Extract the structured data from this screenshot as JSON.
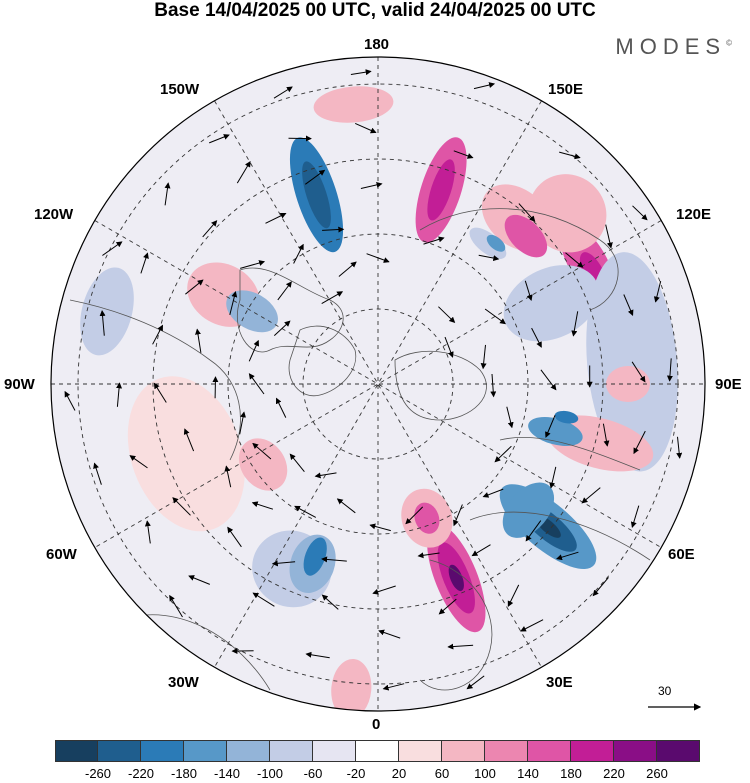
{
  "title": "Base 14/04/2025 00 UTC, valid 24/04/2025 00 UTC",
  "brand": {
    "text": "MODES",
    "mark": "©"
  },
  "longitudes": {
    "top": "180",
    "bottom": "0",
    "left": "90W",
    "right": "90E",
    "upper_left_1": "150W",
    "upper_left_2": "120W",
    "upper_right_1": "150E",
    "upper_right_2": "120E",
    "lower_left_1": "60W",
    "lower_left_2": "30W",
    "lower_right_1": "60E",
    "lower_right_2": "30E"
  },
  "reference_vector": {
    "label": "30",
    "icon": "arrow-right-icon"
  },
  "colorbar": {
    "ticks": [
      "-260",
      "-220",
      "-180",
      "-140",
      "-100",
      "-60",
      "-20",
      "20",
      "60",
      "100",
      "140",
      "180",
      "220",
      "260"
    ],
    "colors": [
      "#173f5f",
      "#1f5e8e",
      "#2b7bb7",
      "#5798c8",
      "#93b4d8",
      "#c3cde6",
      "#e6e5f2",
      "#ffffff",
      "#f9dedf",
      "#f4b7c3",
      "#ec86b0",
      "#df55a6",
      "#c21e96",
      "#8a0e86",
      "#5a0a6e"
    ]
  },
  "anomalies": [
    {
      "color": "#5798c8",
      "cx": 130,
      "cy": 87,
      "rx": 23,
      "ry": 60
    },
    {
      "color": "#1f5e8e",
      "cx": 130,
      "cy": 87,
      "rx": 13,
      "ry": 36
    },
    {
      "color": "#173f5f",
      "cx": 130,
      "cy": 87,
      "rx": 6,
      "ry": 16
    },
    {
      "color": "#df55a6",
      "cx": 158,
      "cy": 82,
      "rx": 21,
      "ry": 58
    },
    {
      "color": "#c21e96",
      "cx": 158,
      "cy": 82,
      "rx": 13,
      "ry": 38
    },
    {
      "color": "#5a0a6e",
      "cx": 158,
      "cy": 82,
      "rx": 6,
      "ry": 14
    },
    {
      "color": "#df55a6",
      "cx": 60,
      "cy": 95,
      "rx": 45,
      "ry": 19
    },
    {
      "color": "#c21e96",
      "cx": 63,
      "cy": 95,
      "rx": 24,
      "ry": 10
    },
    {
      "color": "#5798c8",
      "cx": 130,
      "cy": 77,
      "rx": 32,
      "ry": 20
    },
    {
      "color": "#f4b7c3",
      "cx": 48,
      "cy": 100,
      "rx": 40,
      "ry": 38
    },
    {
      "color": "#c3cde6",
      "cx": 85,
      "cy": 100,
      "rx": 110,
      "ry": 45
    },
    {
      "color": "#f4b7c3",
      "cx": 40,
      "cy": 85,
      "rx": 40,
      "ry": 28
    },
    {
      "color": "#df55a6",
      "cx": 45,
      "cy": 82,
      "rx": 26,
      "ry": 15
    },
    {
      "color": "#c3cde6",
      "cx": 38,
      "cy": 70,
      "rx": 22,
      "ry": 10
    },
    {
      "color": "#5798c8",
      "cx": 40,
      "cy": 72,
      "rx": 11,
      "ry": 6
    },
    {
      "color": "#df55a6",
      "cx": 18,
      "cy": 80,
      "rx": 20,
      "ry": 55
    },
    {
      "color": "#c21e96",
      "cx": 18,
      "cy": 80,
      "rx": 10,
      "ry": 32
    },
    {
      "color": "#2b7bb7",
      "cx": 342,
      "cy": 78,
      "rx": 20,
      "ry": 60
    },
    {
      "color": "#1f5e8e",
      "cx": 342,
      "cy": 78,
      "rx": 10,
      "ry": 35
    },
    {
      "color": "#f4b7c3",
      "cx": 160,
      "cy": 56,
      "rx": 25,
      "ry": 30
    },
    {
      "color": "#df55a6",
      "cx": 160,
      "cy": 56,
      "rx": 12,
      "ry": 16
    },
    {
      "color": "#f4b7c3",
      "cx": 355,
      "cy": 110,
      "rx": 40,
      "ry": 18
    },
    {
      "color": "#c3cde6",
      "cx": 285,
      "cy": 110,
      "rx": 45,
      "ry": 25
    },
    {
      "color": "#f4b7c3",
      "cx": 300,
      "cy": 70,
      "rx": 30,
      "ry": 38
    },
    {
      "color": "#93b4d8",
      "cx": 300,
      "cy": 57,
      "rx": 18,
      "ry": 28
    },
    {
      "color": "#f9dedf",
      "cx": 250,
      "cy": 80,
      "rx": 80,
      "ry": 55
    },
    {
      "color": "#f4b7c3",
      "cx": 235,
      "cy": 55,
      "rx": 28,
      "ry": 22
    },
    {
      "color": "#c3cde6",
      "cx": 205,
      "cy": 80,
      "rx": 40,
      "ry": 38
    },
    {
      "color": "#93b4d8",
      "cx": 200,
      "cy": 75,
      "rx": 22,
      "ry": 30
    },
    {
      "color": "#2b7bb7",
      "cx": 200,
      "cy": 72,
      "rx": 10,
      "ry": 20
    },
    {
      "color": "#f4b7c3",
      "cx": 185,
      "cy": 120,
      "rx": 20,
      "ry": 30
    },
    {
      "color": "#c3cde6",
      "cx": 65,
      "cy": 75,
      "rx": 35,
      "ry": 50
    },
    {
      "color": "#f4b7c3",
      "cx": 105,
      "cy": 90,
      "rx": 25,
      "ry": 55
    },
    {
      "color": "#f4b7c3",
      "cx": 90,
      "cy": 98,
      "rx": 18,
      "ry": 22
    },
    {
      "color": "#5798c8",
      "cx": 105,
      "cy": 72,
      "rx": 13,
      "ry": 28
    },
    {
      "color": "#2b7bb7",
      "cx": 100,
      "cy": 75,
      "rx": 6,
      "ry": 12
    }
  ],
  "arrows": [
    [
      18,
      0.45,
      0.6
    ],
    [
      18,
      0.75,
      0.5
    ],
    [
      18,
      0.95,
      0.55
    ],
    [
      38,
      0.3,
      0.7
    ],
    [
      38,
      0.5,
      0.5
    ],
    [
      38,
      0.7,
      0.8
    ],
    [
      38,
      0.9,
      0.6
    ],
    [
      55,
      0.25,
      0.6
    ],
    [
      55,
      0.4,
      0.9
    ],
    [
      55,
      0.55,
      0.5
    ],
    [
      55,
      0.7,
      0.7
    ],
    [
      55,
      0.85,
      0.8
    ],
    [
      55,
      0.95,
      0.5
    ],
    [
      70,
      0.35,
      0.8
    ],
    [
      70,
      0.5,
      0.6
    ],
    [
      70,
      0.65,
      0.9
    ],
    [
      70,
      0.8,
      0.7
    ],
    [
      70,
      0.92,
      0.6
    ],
    [
      85,
      0.35,
      0.7
    ],
    [
      85,
      0.5,
      0.9
    ],
    [
      85,
      0.65,
      0.6
    ],
    [
      85,
      0.78,
      0.8
    ],
    [
      85,
      0.9,
      0.7
    ],
    [
      100,
      0.4,
      0.6
    ],
    [
      100,
      0.55,
      0.8
    ],
    [
      100,
      0.7,
      0.7
    ],
    [
      100,
      0.83,
      0.9
    ],
    [
      100,
      0.93,
      0.6
    ],
    [
      115,
      0.45,
      0.7
    ],
    [
      115,
      0.6,
      0.6
    ],
    [
      115,
      0.75,
      0.8
    ],
    [
      115,
      0.88,
      0.7
    ],
    [
      130,
      0.5,
      0.6
    ],
    [
      130,
      0.65,
      0.9
    ],
    [
      130,
      0.8,
      0.7
    ],
    [
      130,
      0.92,
      0.8
    ],
    [
      145,
      0.45,
      0.7
    ],
    [
      145,
      0.6,
      0.6
    ],
    [
      145,
      0.75,
      0.8
    ],
    [
      145,
      0.88,
      0.9
    ],
    [
      160,
      0.4,
      0.8
    ],
    [
      160,
      0.55,
      0.6
    ],
    [
      160,
      0.7,
      0.7
    ],
    [
      160,
      0.85,
      0.9
    ],
    [
      160,
      0.95,
      0.6
    ],
    [
      175,
      0.45,
      0.6
    ],
    [
      175,
      0.62,
      0.8
    ],
    [
      175,
      0.78,
      0.7
    ],
    [
      175,
      0.92,
      0.6
    ],
    [
      190,
      0.4,
      0.7
    ],
    [
      190,
      0.55,
      0.9
    ],
    [
      190,
      0.7,
      0.6
    ],
    [
      190,
      0.85,
      0.8
    ],
    [
      205,
      0.3,
      0.6
    ],
    [
      205,
      0.45,
      0.8
    ],
    [
      205,
      0.6,
      0.7
    ],
    [
      205,
      0.75,
      0.9
    ],
    [
      205,
      0.9,
      0.6
    ],
    [
      220,
      0.35,
      0.7
    ],
    [
      220,
      0.5,
      0.6
    ],
    [
      220,
      0.65,
      0.8
    ],
    [
      220,
      0.8,
      0.7
    ],
    [
      220,
      0.93,
      0.9
    ],
    [
      235,
      0.4,
      0.8
    ],
    [
      235,
      0.55,
      0.6
    ],
    [
      235,
      0.7,
      0.9
    ],
    [
      235,
      0.85,
      0.7
    ],
    [
      250,
      0.3,
      0.6
    ],
    [
      250,
      0.45,
      0.7
    ],
    [
      250,
      0.6,
      0.8
    ],
    [
      250,
      0.75,
      0.6
    ],
    [
      250,
      0.9,
      0.7
    ],
    [
      265,
      0.35,
      0.9
    ],
    [
      265,
      0.5,
      0.6
    ],
    [
      265,
      0.65,
      0.7
    ],
    [
      265,
      0.8,
      0.8
    ],
    [
      265,
      0.93,
      0.6
    ],
    [
      280,
      0.4,
      0.7
    ],
    [
      280,
      0.55,
      0.8
    ],
    [
      280,
      0.7,
      0.6
    ],
    [
      280,
      0.85,
      0.9
    ],
    [
      295,
      0.35,
      0.6
    ],
    [
      295,
      0.5,
      0.8
    ],
    [
      295,
      0.65,
      0.7
    ],
    [
      295,
      0.8,
      0.6
    ],
    [
      295,
      0.93,
      0.8
    ],
    [
      310,
      0.4,
      0.7
    ],
    [
      310,
      0.55,
      0.9
    ],
    [
      310,
      0.7,
      0.6
    ],
    [
      310,
      0.85,
      0.7
    ],
    [
      325,
      0.3,
      0.8
    ],
    [
      325,
      0.45,
      0.6
    ],
    [
      325,
      0.6,
      0.7
    ],
    [
      325,
      0.75,
      0.9
    ],
    [
      325,
      0.9,
      0.6
    ],
    [
      340,
      0.35,
      0.7
    ],
    [
      340,
      0.5,
      0.6
    ],
    [
      340,
      0.65,
      0.8
    ],
    [
      340,
      0.8,
      0.7
    ],
    [
      340,
      0.93,
      0.6
    ],
    [
      355,
      0.4,
      0.8
    ],
    [
      355,
      0.6,
      0.6
    ],
    [
      355,
      0.8,
      0.7
    ],
    [
      355,
      0.95,
      0.5
    ]
  ]
}
